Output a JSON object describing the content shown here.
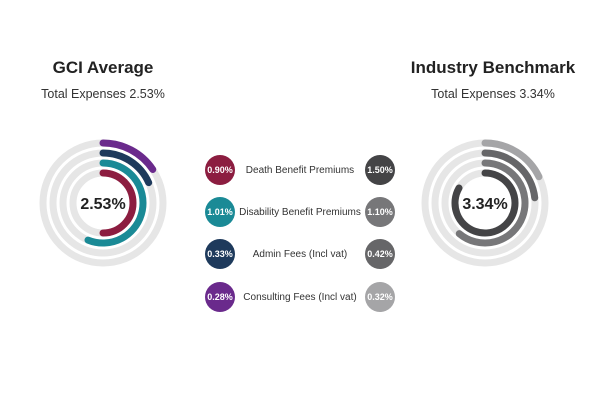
{
  "colors": {
    "death": "#8c1d40",
    "disability": "#1a8a96",
    "admin": "#1e3a5c",
    "consulting": "#6a2a8c",
    "track": "#e6e6e6",
    "benchmark_death": "#444446",
    "benchmark_disability": "#777779",
    "benchmark_admin": "#666668",
    "benchmark_consulting": "#a5a5a7"
  },
  "chart_data": [
    {
      "type": "radial-bar",
      "title": "GCI Average",
      "subtitle": "Total Expenses 2.53%",
      "center_label": "2.53%",
      "total": 2.53,
      "unit": "%",
      "series": [
        {
          "name": "Death Benefit Premiums",
          "value": 0.9,
          "label": "0.90%"
        },
        {
          "name": "Disability Benefit Premiums",
          "value": 1.01,
          "label": "1.01%"
        },
        {
          "name": "Admin Fees (Incl vat)",
          "value": 0.33,
          "label": "0.33%"
        },
        {
          "name": "Consulting Fees (Incl vat)",
          "value": 0.28,
          "label": "0.28%"
        }
      ]
    },
    {
      "type": "radial-bar",
      "title": "Industry Benchmark",
      "subtitle": "Total Expenses 3.34%",
      "center_label": "3.34%",
      "total": 3.34,
      "unit": "%",
      "series": [
        {
          "name": "Death Benefit Premiums",
          "value": 1.5,
          "label": "1.50%"
        },
        {
          "name": "Disability Benefit Premiums",
          "value": 1.1,
          "label": "1.10%"
        },
        {
          "name": "Admin Fees (Incl vat)",
          "value": 0.42,
          "label": "0.42%"
        },
        {
          "name": "Consulting Fees (Incl vat)",
          "value": 0.32,
          "label": "0.32%"
        }
      ]
    }
  ]
}
